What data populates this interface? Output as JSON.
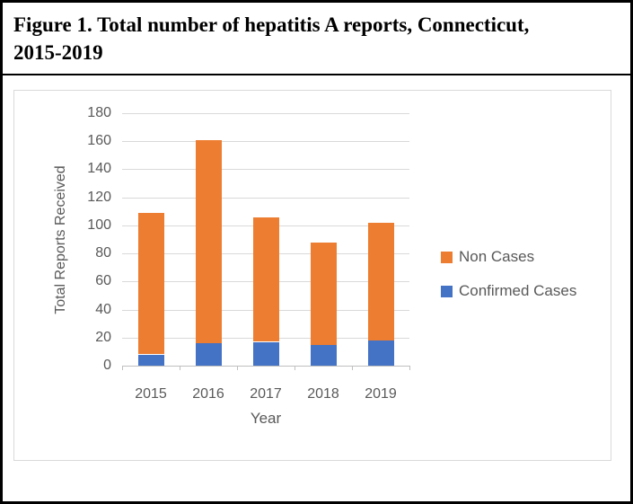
{
  "figure": {
    "title_lines": [
      "Figure 1. Total number of hepatitis A reports, Connecticut,",
      "2015-2019"
    ]
  },
  "chart_data": {
    "type": "bar",
    "subtype": "stacked-vertical",
    "categories": [
      "2015",
      "2016",
      "2017",
      "2018",
      "2019"
    ],
    "series": [
      {
        "name": "Confirmed Cases",
        "color": "#4472C4",
        "values": [
          8,
          16,
          17,
          15,
          18
        ]
      },
      {
        "name": "Non Cases",
        "color": "#ED7D31",
        "values": [
          101,
          145,
          89,
          73,
          84
        ]
      }
    ],
    "stacked_totals": [
      109,
      161,
      106,
      88,
      102
    ],
    "xlabel": "Year",
    "ylabel": "Total Reports Received",
    "ylim": [
      0,
      180
    ],
    "yticks": [
      0,
      20,
      40,
      60,
      80,
      100,
      120,
      140,
      160,
      180
    ],
    "grid": true,
    "legend_position": "right",
    "legend_order": [
      "Non Cases",
      "Confirmed Cases"
    ],
    "colors": {
      "grid": "#D9D9D9",
      "axis_line": "#BFBFBF",
      "axis_text": "#595959",
      "chart_border": "#D9D9D9",
      "frame_border": "#000000"
    }
  }
}
